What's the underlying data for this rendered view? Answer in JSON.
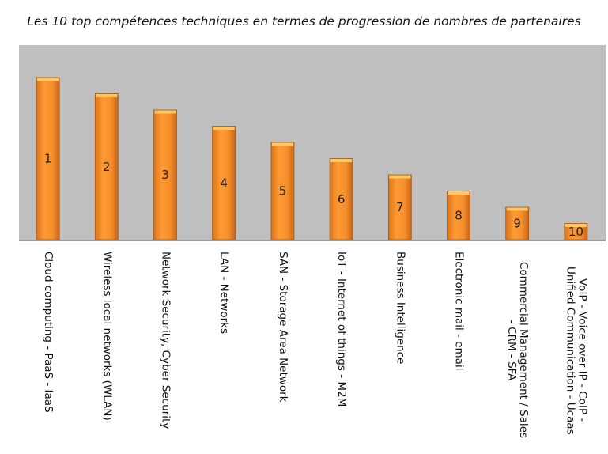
{
  "chart_data": {
    "type": "bar",
    "title": "Les 10 top compétences techniques en termes de progression de nombres de partenaires",
    "xlabel": "",
    "ylabel": "",
    "ylim": [
      0,
      12
    ],
    "grid": false,
    "legend": "none",
    "categories": [
      "Cloud computing - PaaS - IaaS",
      "Wireless local networks (WLAN)",
      "Network Security, Cyber Security",
      "LAN - Networks",
      "SAN - Storage Area Network",
      "IoT - Internet of things - M2M",
      "Business Intelligence",
      "Electronic mail - email",
      "Commercial Management  / Sales\n- CRM - SFA",
      "VoIP - Voice over IP - CoIP -\nUnified Communication - Ucaas"
    ],
    "values": [
      10,
      9,
      8,
      7,
      6,
      5,
      4,
      3,
      2,
      1
    ],
    "data_labels": [
      "1",
      "2",
      "3",
      "4",
      "5",
      "6",
      "7",
      "8",
      "9",
      "10"
    ],
    "colors": {
      "plot_bg": "#bfbfbf",
      "bar": "#f28c28",
      "bar_light": "#ffa43a",
      "bar_edge": "#a8570f"
    }
  }
}
